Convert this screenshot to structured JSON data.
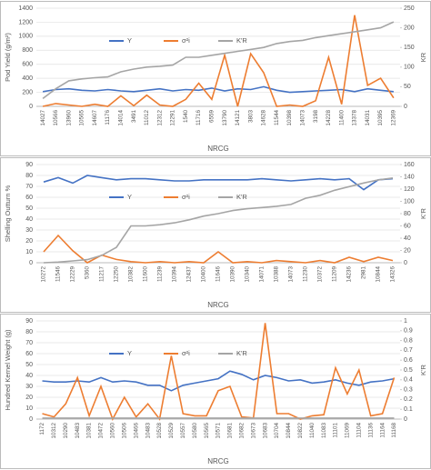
{
  "chart_data": [
    {
      "type": "line",
      "xlabel": "NRCG",
      "ylabel": "Pod Yield (g/m²)",
      "y2label": "KR",
      "categories": [
        "14027",
        "10566",
        "13960",
        "10565",
        "14607",
        "11176",
        "14014",
        "3491",
        "11012",
        "12312",
        "12291",
        "1540",
        "11716",
        "6559",
        "13790",
        "14121",
        "3803",
        "14628",
        "11544",
        "10398",
        "14073",
        "3198",
        "14228",
        "11400",
        "13378",
        "14031",
        "10395",
        "12369"
      ],
      "series": [
        {
          "name": "Y",
          "color": "#4472c4",
          "axis": "y",
          "values": [
            210,
            240,
            250,
            230,
            220,
            240,
            220,
            210,
            230,
            250,
            220,
            240,
            230,
            260,
            220,
            250,
            240,
            280,
            230,
            200,
            210,
            220,
            230,
            240,
            210,
            250,
            230,
            210
          ]
        },
        {
          "name": "σ²i",
          "color": "#ed7d31",
          "axis": "y",
          "values": [
            0,
            40,
            20,
            0,
            30,
            0,
            150,
            10,
            160,
            20,
            0,
            100,
            330,
            100,
            730,
            0,
            750,
            480,
            0,
            20,
            0,
            80,
            700,
            30,
            1300,
            300,
            400,
            120
          ]
        },
        {
          "name": "K'R",
          "color": "#a5a5a5",
          "axis": "y2",
          "values": [
            20,
            45,
            65,
            70,
            73,
            75,
            88,
            95,
            100,
            102,
            105,
            125,
            125,
            130,
            135,
            140,
            145,
            150,
            160,
            165,
            168,
            175,
            180,
            185,
            190,
            195,
            200,
            215
          ]
        }
      ],
      "ylim": [
        0,
        1400
      ],
      "yticks": [
        0,
        200,
        400,
        600,
        800,
        1000,
        1200,
        1400
      ],
      "y2lim": [
        0,
        250
      ],
      "y2ticks": [
        0,
        50,
        100,
        150,
        200,
        250
      ],
      "grid": true
    },
    {
      "type": "line",
      "xlabel": "NRCG",
      "ylabel": "Shelling Outturn %",
      "y2label": "K'R",
      "categories": [
        "10272",
        "11546",
        "12229",
        "5360",
        "11217",
        "12250",
        "10382",
        "11600",
        "11239",
        "10394",
        "12437",
        "10400",
        "11646",
        "10390",
        "10340",
        "14071",
        "10388",
        "14073",
        "11230",
        "10372",
        "11209",
        "14236",
        "2981",
        "10844",
        "14326"
      ],
      "series": [
        {
          "name": "Y",
          "color": "#4472c4",
          "axis": "y",
          "values": [
            74,
            78,
            73,
            80,
            78,
            76,
            77,
            77,
            76,
            75,
            75,
            76,
            76,
            76,
            76,
            77,
            76,
            75,
            76,
            77,
            76,
            77,
            67,
            76,
            77
          ]
        },
        {
          "name": "σ²i",
          "color": "#ed7d31",
          "axis": "y",
          "values": [
            10,
            25,
            11,
            0,
            7,
            3,
            1,
            0,
            1,
            0,
            1,
            0,
            10,
            0,
            1,
            0,
            2,
            1,
            0,
            2,
            0,
            5,
            1,
            5,
            2
          ]
        },
        {
          "name": "K'R",
          "color": "#a5a5a5",
          "axis": "y2",
          "values": [
            0,
            1,
            3,
            5,
            12,
            25,
            60,
            60,
            62,
            65,
            70,
            76,
            80,
            85,
            88,
            90,
            92,
            95,
            105,
            110,
            118,
            124,
            130,
            135,
            138
          ]
        }
      ],
      "ylim": [
        0,
        90
      ],
      "yticks": [
        0,
        10,
        20,
        30,
        40,
        50,
        60,
        70,
        80,
        90
      ],
      "y2lim": [
        0,
        160
      ],
      "y2ticks": [
        0,
        20,
        40,
        60,
        80,
        100,
        120,
        140,
        160
      ],
      "grid": true
    },
    {
      "type": "line",
      "xlabel": "NRCG",
      "ylabel": "Hundred Kernel Weight (g)",
      "y2label": "K'R",
      "categories": [
        "1172",
        "10312",
        "10290",
        "10483",
        "10381",
        "10472",
        "10560",
        "10506",
        "10466",
        "10483",
        "10528",
        "10529",
        "10557",
        "10580",
        "10565",
        "10571",
        "10681",
        "10682",
        "10673",
        "10683",
        "10704",
        "10844",
        "10822",
        "11040",
        "11083",
        "11101",
        "11069",
        "11104",
        "11136",
        "11164",
        "11168"
      ],
      "series": [
        {
          "name": "Y",
          "color": "#4472c4",
          "axis": "y",
          "values": [
            35,
            34,
            34,
            35,
            34,
            38,
            34,
            35,
            34,
            31,
            31,
            26,
            31,
            33,
            35,
            37,
            44,
            41,
            36,
            40,
            38,
            35,
            36,
            33,
            34,
            36,
            33,
            31,
            34,
            35,
            37
          ]
        },
        {
          "name": "σ²i",
          "color": "#ed7d31",
          "axis": "y",
          "values": [
            5,
            2,
            14,
            38,
            3,
            30,
            0,
            20,
            2,
            14,
            0,
            58,
            5,
            3,
            3,
            26,
            30,
            2,
            1,
            88,
            5,
            5,
            0,
            3,
            4,
            47,
            23,
            45,
            3,
            5,
            38
          ]
        },
        {
          "name": "K'R",
          "color": "#a5a5a5",
          "axis": "y2",
          "values": [
            0.01,
            0.01,
            0.01,
            0.01,
            0.01,
            0.01,
            0.01,
            0.01,
            0.01,
            0.01,
            0.01,
            0.01,
            0.01,
            0.01,
            0.01,
            0.01,
            0.01,
            0.01,
            0.01,
            0.01,
            0.01,
            0.01,
            0.01,
            0.01,
            0.01,
            0.01,
            0.01,
            0.01,
            0.01,
            0.01,
            0.01
          ]
        }
      ],
      "ylim": [
        0,
        90
      ],
      "yticks": [
        0,
        10,
        20,
        30,
        40,
        50,
        60,
        70,
        80,
        90
      ],
      "y2lim": [
        0,
        1
      ],
      "y2ticks": [
        0,
        0.1,
        0.2,
        0.3,
        0.4,
        0.5,
        0.6,
        0.7,
        0.8,
        0.9,
        1
      ],
      "grid": true
    }
  ]
}
